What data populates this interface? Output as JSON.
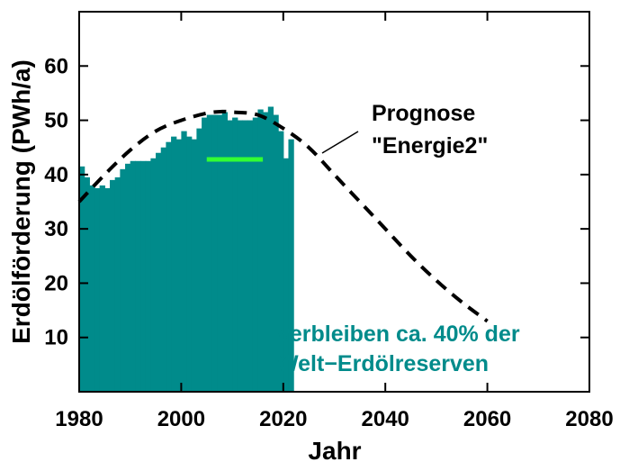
{
  "chart_data": {
    "type": "bar",
    "xlabel": "Jahr",
    "ylabel": "Erdölförderung (PWh/a)",
    "xlim": [
      1980,
      2080
    ],
    "ylim": [
      0,
      70
    ],
    "x_ticks": [
      "1980",
      "2000",
      "2020",
      "2040",
      "2060",
      "2080"
    ],
    "y_ticks": [
      "10",
      "20",
      "30",
      "40",
      "50",
      "60"
    ],
    "grid": false,
    "colors": {
      "bars": "#008b8b",
      "reference_line": "#33ff33",
      "prognosis": "#000000",
      "teal_text": "#008b8b"
    },
    "series": [
      {
        "name": "",
        "type": "bar",
        "x": [
          1980,
          1981,
          1982,
          1983,
          1984,
          1985,
          1986,
          1987,
          1988,
          1989,
          1990,
          1991,
          1992,
          1993,
          1994,
          1995,
          1996,
          1997,
          1998,
          1999,
          2000,
          2001,
          2002,
          2003,
          2004,
          2005,
          2006,
          2007,
          2008,
          2009,
          2010,
          2011,
          2012,
          2013,
          2014,
          2015,
          2016,
          2017,
          2018,
          2019,
          2020,
          2021
        ],
        "values": [
          41.5,
          39.5,
          38.0,
          37.5,
          38.0,
          37.5,
          39.0,
          39.5,
          41.0,
          42.0,
          42.5,
          42.5,
          42.5,
          42.5,
          43.0,
          44.0,
          45.0,
          46.0,
          47.0,
          46.5,
          48.0,
          47.0,
          46.5,
          48.5,
          50.5,
          51.0,
          51.0,
          51.0,
          51.5,
          50.0,
          50.5,
          50.0,
          50.0,
          50.0,
          50.5,
          52.0,
          51.5,
          52.5,
          51.0,
          48.0,
          43.0,
          46.5
        ]
      },
      {
        "name": "",
        "type": "line",
        "style": "dashed",
        "x": [
          1980,
          1985,
          1990,
          1995,
          2000,
          2005,
          2008,
          2010,
          2015,
          2020,
          2025,
          2030,
          2035,
          2040,
          2045,
          2050,
          2055,
          2060
        ],
        "values": [
          35.0,
          40.0,
          44.5,
          48.0,
          50.0,
          51.3,
          51.6,
          51.5,
          51.0,
          48.5,
          45.0,
          40.0,
          35.0,
          30.0,
          25.0,
          20.5,
          16.5,
          13.0
        ]
      },
      {
        "name": "",
        "type": "line",
        "x": [
          2005,
          2016
        ],
        "values": [
          42.8,
          42.8
        ]
      }
    ],
    "annotations": {
      "prognose_line1": "Prognose",
      "prognose_line2": "\"Energie2\"",
      "remaining_line1": "verbleiben ca. 40% der",
      "remaining_line2": "Welt−Erdölreserven"
    }
  }
}
